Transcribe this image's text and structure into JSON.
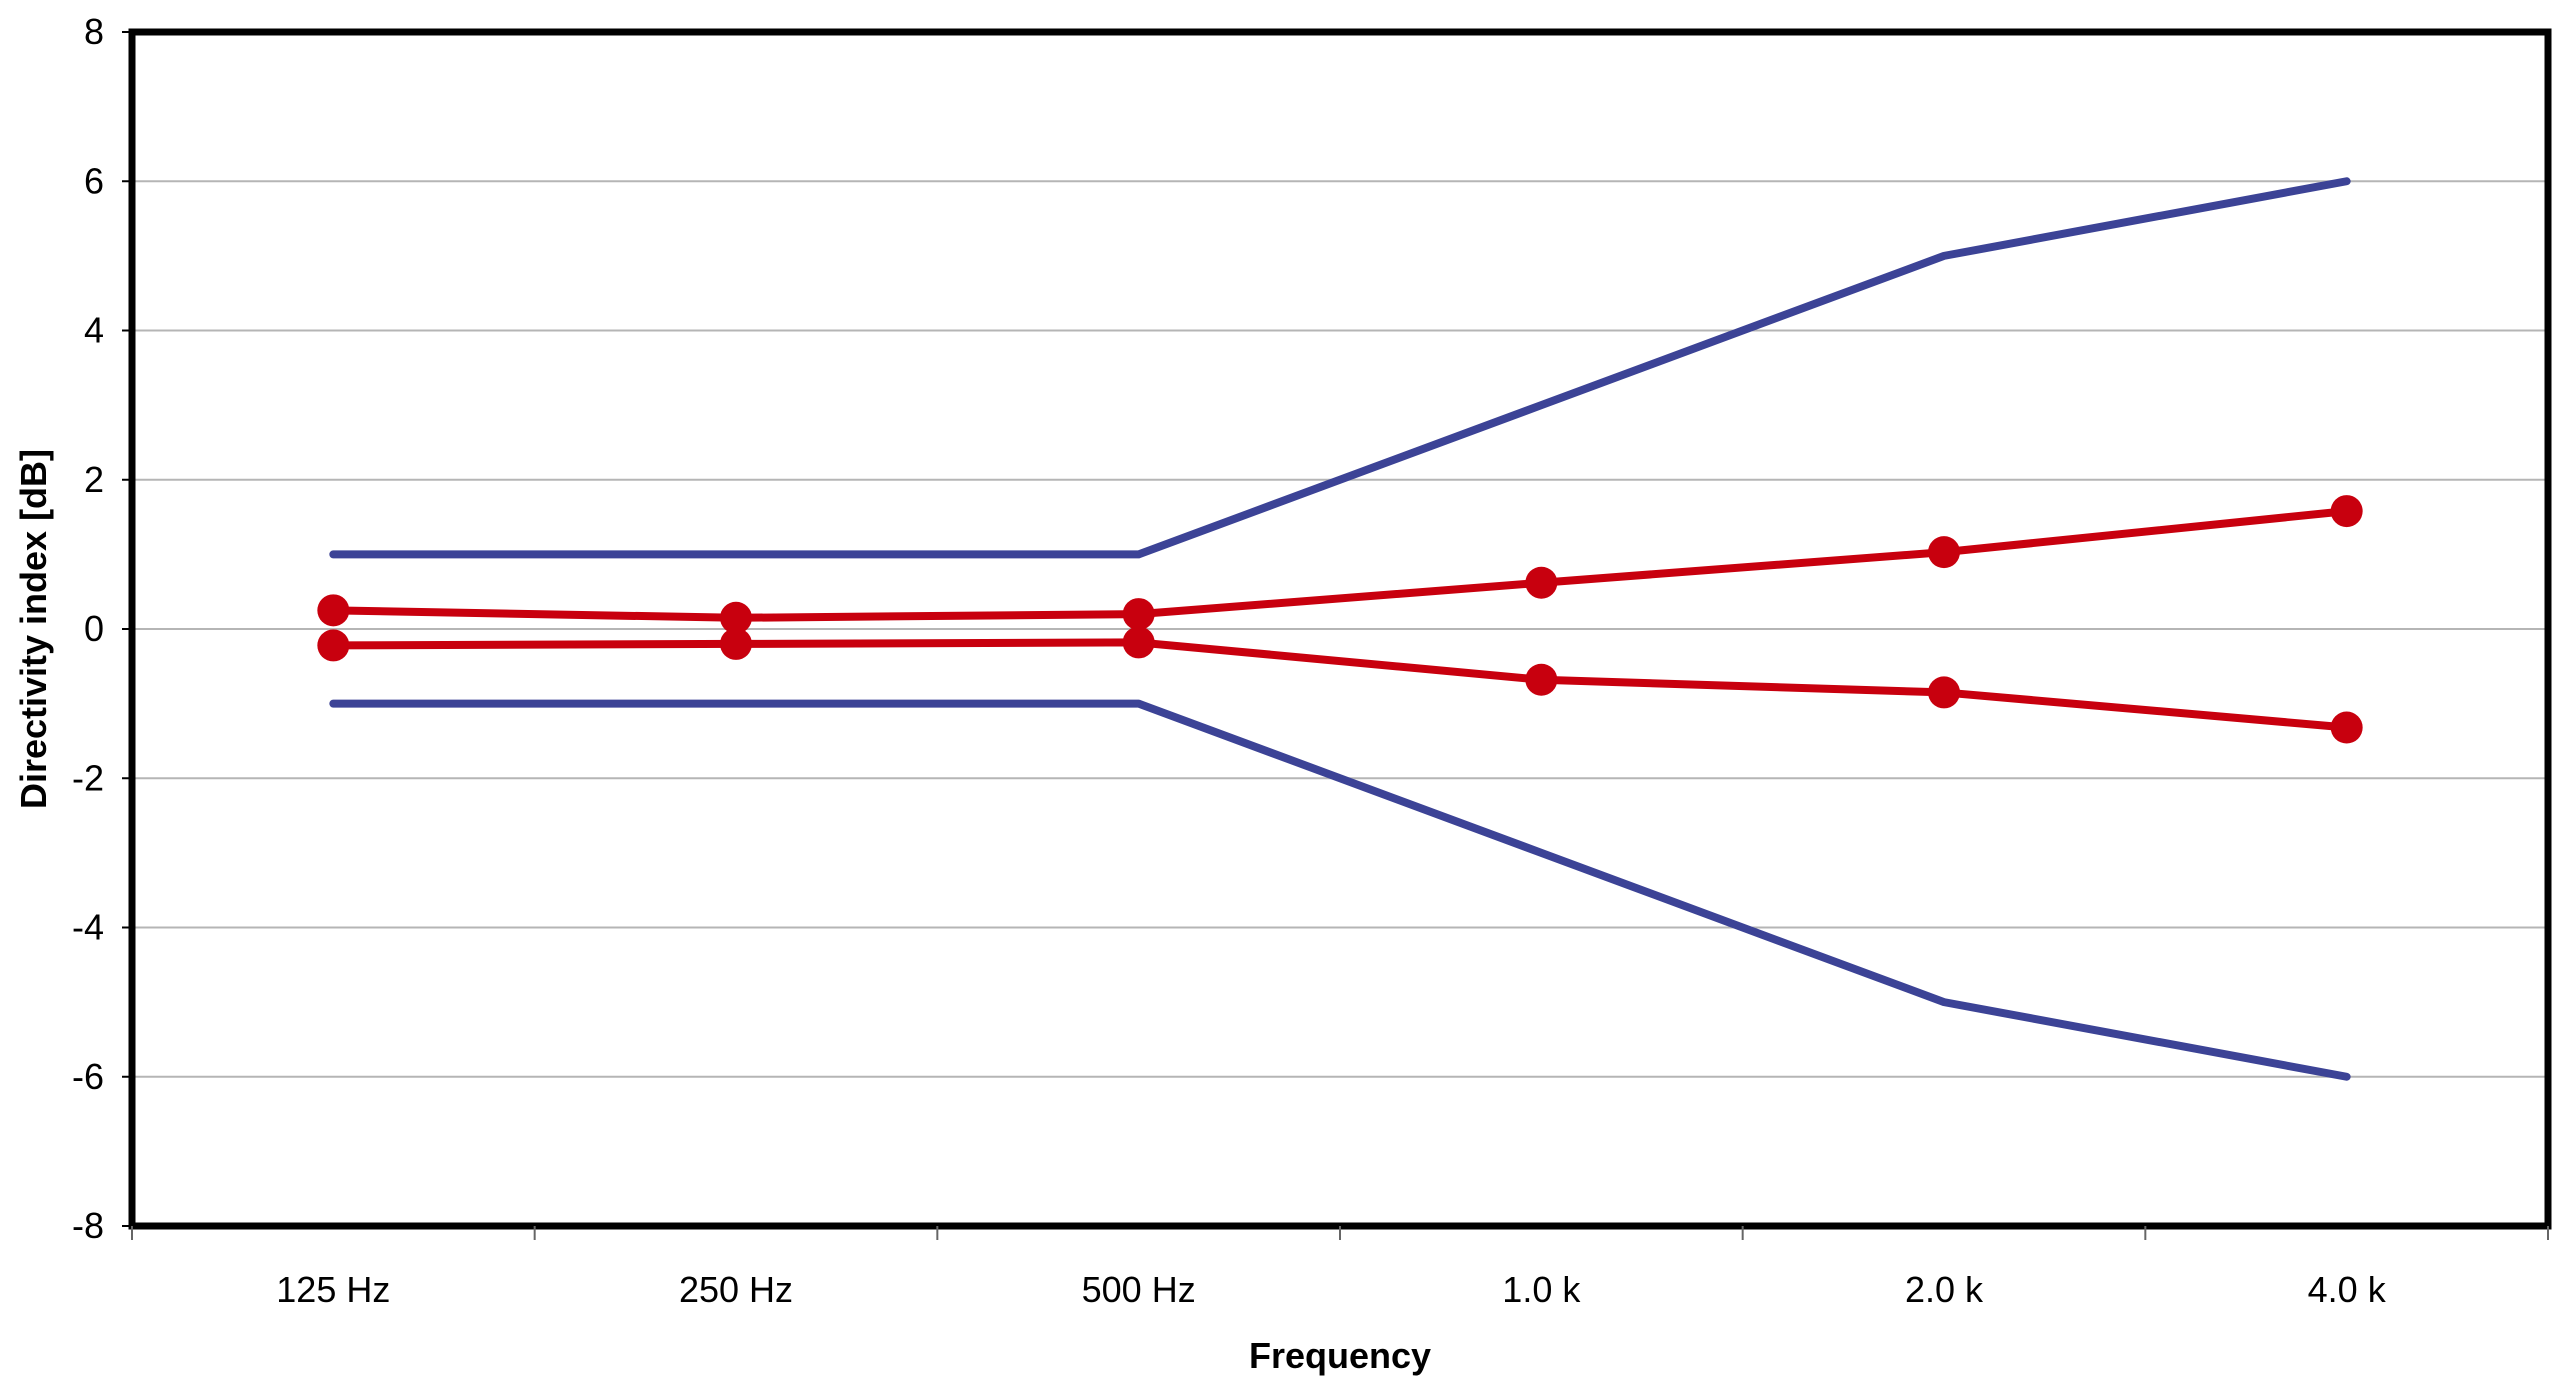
{
  "chart_data": {
    "type": "line",
    "title": "",
    "xlabel": "Frequency",
    "ylabel": "Directivity index [dB]",
    "categories": [
      "125 Hz",
      "250 Hz",
      "500 Hz",
      "1.0 k",
      "2.0 k",
      "4.0 k"
    ],
    "ylim": [
      -8,
      8
    ],
    "yticks": [
      -8,
      -6,
      -4,
      -2,
      0,
      2,
      4,
      6,
      8
    ],
    "grid": "horizontal",
    "legend": "none",
    "series": [
      {
        "values": [
          1,
          1,
          1,
          3,
          5,
          6
        ],
        "color": "#3c4396",
        "markers": false
      },
      {
        "values": [
          -1,
          -1,
          -1,
          -3,
          -5,
          -6
        ],
        "color": "#3c4396",
        "markers": false
      },
      {
        "values": [
          0.25,
          0.15,
          0.2,
          0.62,
          1.03,
          1.58
        ],
        "color": "#c8000e",
        "markers": true
      },
      {
        "values": [
          -0.22,
          -0.2,
          -0.18,
          -0.68,
          -0.85,
          -1.32
        ],
        "color": "#c8000e",
        "markers": true
      }
    ]
  }
}
